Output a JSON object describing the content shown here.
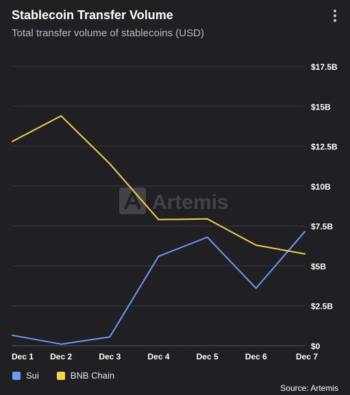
{
  "header": {
    "title": "Stablecoin Transfer Volume",
    "subtitle": "Total transfer volume of stablecoins (USD)",
    "menu_icon": "more-vertical-icon"
  },
  "watermark": {
    "text": "Artemis",
    "icon": "artemis-logo-icon"
  },
  "source": "Source: Artemis",
  "colors": {
    "background": "#1f1f24",
    "grid": "#3a3a42",
    "sui": "#6e9bf5",
    "bnb": "#f2d44e"
  },
  "chart_data": {
    "type": "line",
    "title": "Stablecoin Transfer Volume",
    "subtitle": "Total transfer volume of stablecoins (USD)",
    "xlabel": "",
    "ylabel": "",
    "categories": [
      "Dec 1",
      "Dec 2",
      "Dec 3",
      "Dec 4",
      "Dec 5",
      "Dec 6",
      "Dec 7"
    ],
    "y_ticks": [
      0,
      2.5,
      5,
      7.5,
      10,
      12.5,
      15,
      17.5
    ],
    "y_tick_labels": [
      "$0",
      "$2.5B",
      "$5B",
      "$7.5B",
      "$10B",
      "$12.5B",
      "$15B",
      "$17.5B"
    ],
    "ylim": [
      0,
      17.5
    ],
    "y_unit": "USD billions",
    "grid": true,
    "legend_position": "bottom-left",
    "series": [
      {
        "name": "Sui",
        "color": "#6e9bf5",
        "values": [
          0.65,
          0.1,
          0.55,
          5.6,
          6.8,
          3.6,
          7.15
        ]
      },
      {
        "name": "BNB Chain",
        "color": "#f2d44e",
        "values": [
          12.8,
          14.4,
          11.4,
          7.9,
          7.95,
          6.3,
          5.75
        ]
      }
    ]
  }
}
